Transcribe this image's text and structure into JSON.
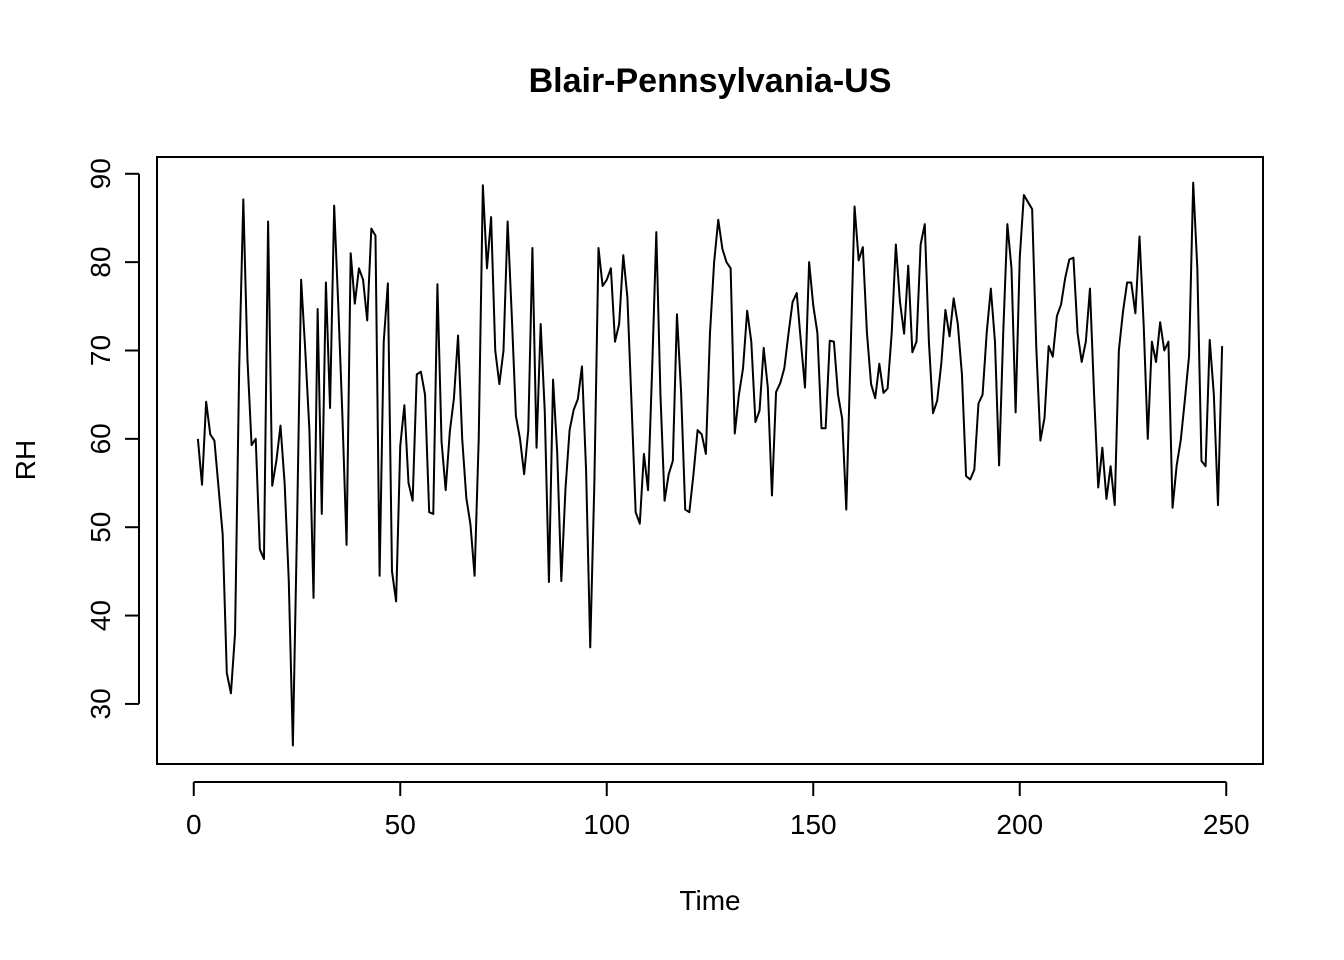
{
  "chart_data": {
    "type": "line",
    "title": "Blair-Pennsylvania-US",
    "xlabel": "Time",
    "ylabel": "RH",
    "xlim": [
      -8.9,
      258.9
    ],
    "ylim": [
      23.2,
      91.9
    ],
    "x_ticks": [
      0,
      50,
      100,
      150,
      200,
      250
    ],
    "y_ticks": [
      30,
      40,
      50,
      60,
      70,
      80,
      90
    ],
    "x_tick_labels": [
      "0",
      "50",
      "100",
      "150",
      "200",
      "250"
    ],
    "y_tick_labels": [
      "30",
      "40",
      "50",
      "60",
      "70",
      "80",
      "90"
    ],
    "grid": false,
    "series": [
      {
        "color": "#000000",
        "x_start": 1,
        "values": [
          60.0,
          54.8,
          64.2,
          60.5,
          59.8,
          54.5,
          49.2,
          33.5,
          31.2,
          38.0,
          68.0,
          87.1,
          69.0,
          59.3,
          60.0,
          47.5,
          46.4,
          84.6,
          54.7,
          57.5,
          61.5,
          55.0,
          44.0,
          25.3,
          50.0,
          78.0,
          70.0,
          61.0,
          42.0,
          74.7,
          51.5,
          77.7,
          63.5,
          86.4,
          75.0,
          62.5,
          48.0,
          81.0,
          75.3,
          79.3,
          78.0,
          73.4,
          83.8,
          83.0,
          44.5,
          71.0,
          77.6,
          45.0,
          41.6,
          59.2,
          63.8,
          55.0,
          53.0,
          67.3,
          67.6,
          65.0,
          51.7,
          51.5,
          77.5,
          59.7,
          54.2,
          60.8,
          64.6,
          71.7,
          60.0,
          53.3,
          50.3,
          44.5,
          60.0,
          88.7,
          79.3,
          85.1,
          70.0,
          66.2,
          70.0,
          84.6,
          74.0,
          62.6,
          60.0,
          56.0,
          61.0,
          81.6,
          59.0,
          73.0,
          63.0,
          43.8,
          66.7,
          58.5,
          43.9,
          54.3,
          61.0,
          63.3,
          64.5,
          68.2,
          56.4,
          36.4,
          55.0,
          81.6,
          77.3,
          78.0,
          79.3,
          71.0,
          73.0,
          80.8,
          76.0,
          64.0,
          51.7,
          50.4,
          58.3,
          54.2,
          68.0,
          83.4,
          65.0,
          53.0,
          56.0,
          57.5,
          74.1,
          65.3,
          52.0,
          51.7,
          56.0,
          61.0,
          60.5,
          58.3,
          72.0,
          80.0,
          84.8,
          81.5,
          80.0,
          79.3,
          60.6,
          65.0,
          68.0,
          74.5,
          71.0,
          61.9,
          63.2,
          70.3,
          65.8,
          53.6,
          65.3,
          66.3,
          68.0,
          71.9,
          75.5,
          76.5,
          71.0,
          65.8,
          80.0,
          75.1,
          72.0,
          61.2,
          61.2,
          71.1,
          71.0,
          65.0,
          62.3,
          52.0,
          69.0,
          86.3,
          80.2,
          81.7,
          72.0,
          66.2,
          64.6,
          68.5,
          65.2,
          65.7,
          72.0,
          82.0,
          75.5,
          71.9,
          79.6,
          69.8,
          71.0,
          82.0,
          84.3,
          71.0,
          62.9,
          64.3,
          68.5,
          74.6,
          71.6,
          75.9,
          73.0,
          67.3,
          55.8,
          55.4,
          56.5,
          64.0,
          65.0,
          72.0,
          77.0,
          71.0,
          57.0,
          72.0,
          84.3,
          79.3,
          63.0,
          80.5,
          87.6,
          86.8,
          86.0,
          70.4,
          59.8,
          62.4,
          70.5,
          69.3,
          73.9,
          75.2,
          78.2,
          80.3,
          80.5,
          72.0,
          68.7,
          71.0,
          77.0,
          65.0,
          54.5,
          59.0,
          53.2,
          56.9,
          52.5,
          70.0,
          74.4,
          77.7,
          77.7,
          74.2,
          82.9,
          73.0,
          60.0,
          71.0,
          68.7,
          73.2,
          70.0,
          71.0,
          52.2,
          57.0,
          59.9,
          64.5,
          69.4,
          89.0,
          79.3,
          57.5,
          56.9,
          71.2,
          65.0,
          52.5,
          70.5
        ]
      }
    ]
  }
}
